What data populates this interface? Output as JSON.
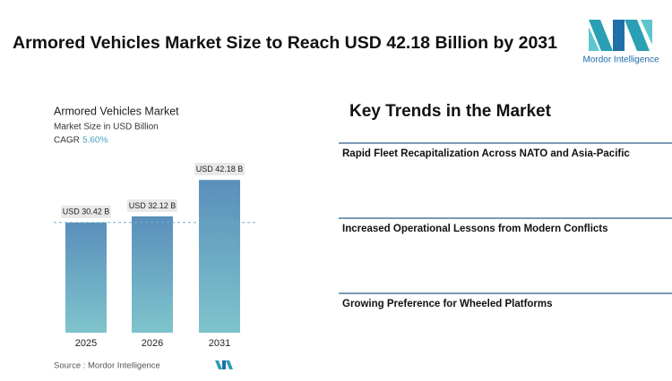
{
  "header": {
    "title": "Armored Vehicles Market Size to Reach USD 42.18 Billion by 2031",
    "brand": "Mordor Intelligence"
  },
  "chart_data": {
    "type": "bar",
    "title": "Armored Vehicles Market",
    "subtitle": "Market Size in USD Billion",
    "cagr_label": "CAGR",
    "cagr_value": "5.60%",
    "categories": [
      "2025",
      "2026",
      "2031"
    ],
    "values": [
      30.42,
      32.12,
      42.18
    ],
    "value_labels": [
      "USD 30.42 B",
      "USD 32.12 B",
      "USD 42.18 B"
    ],
    "colors": [
      "#5a8fbb",
      "#7fc4cc"
    ],
    "source": "Source :  Mordor Intelligence"
  },
  "key_trends": {
    "heading": "Key Trends in the Market",
    "items": [
      "Rapid Fleet Recapitalization Across NATO and Asia-Pacific",
      "Increased Operational Lessons from Modern Conflicts",
      "Growing Preference for Wheeled Platforms"
    ]
  }
}
